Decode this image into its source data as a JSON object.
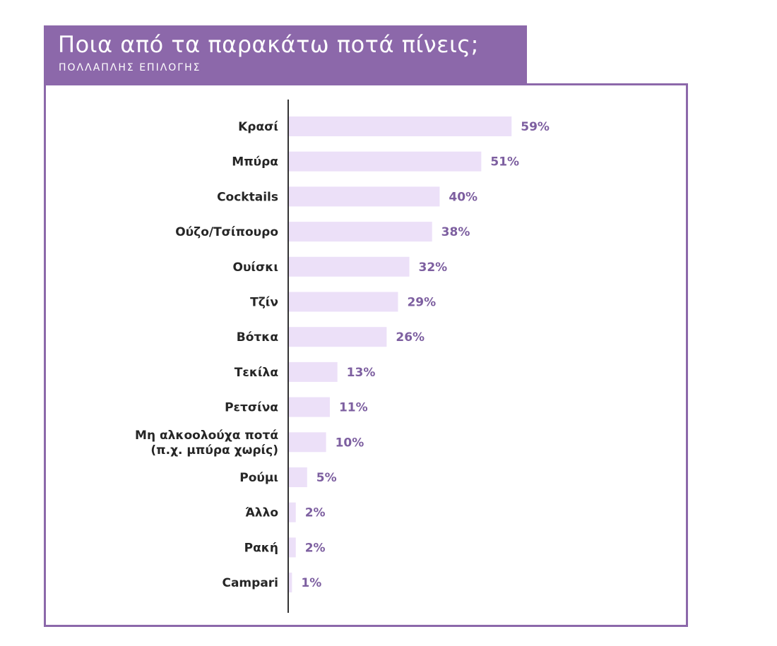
{
  "header": {
    "title": "Ποια από τα παρακάτω ποτά πίνεις;",
    "subtitle": "ΠΟΛΛΑΠΛΗΣ ΕΠΙΛΟΓΗΣ"
  },
  "colors": {
    "accent": "#8c68aa",
    "bar": "#ece0f8",
    "value_text": "#7d5fa0",
    "label_text": "#262626",
    "axis": "#333333"
  },
  "chart_data": {
    "type": "bar",
    "orientation": "horizontal",
    "title": "Ποια από τα παρακάτω ποτά πίνεις;",
    "subtitle": "ΠΟΛΛΑΠΛΗΣ ΕΠΙΛΟΓΗΣ",
    "xlabel": "",
    "ylabel": "",
    "unit": "%",
    "xlim": [
      0,
      100
    ],
    "grid": false,
    "categories": [
      [
        "Κρασί"
      ],
      [
        "Μπύρα"
      ],
      [
        "Cocktails"
      ],
      [
        "Ούζο/Τσίπουρο"
      ],
      [
        "Ουίσκι"
      ],
      [
        "Τζίν"
      ],
      [
        "Βότκα"
      ],
      [
        "Τεκίλα"
      ],
      [
        "Ρετσίνα"
      ],
      [
        "Μη αλκοολούχα ποτά",
        "(π.χ. μπύρα χωρίς)"
      ],
      [
        "Ρούμι"
      ],
      [
        "Άλλο"
      ],
      [
        "Ρακή"
      ],
      [
        "Campari"
      ]
    ],
    "values": [
      59,
      51,
      40,
      38,
      32,
      29,
      26,
      13,
      11,
      10,
      5,
      2,
      2,
      1
    ],
    "value_labels": [
      "59%",
      "51%",
      "40%",
      "38%",
      "32%",
      "29%",
      "26%",
      "13%",
      "11%",
      "10%",
      "5%",
      "2%",
      "2%",
      "1%"
    ]
  }
}
